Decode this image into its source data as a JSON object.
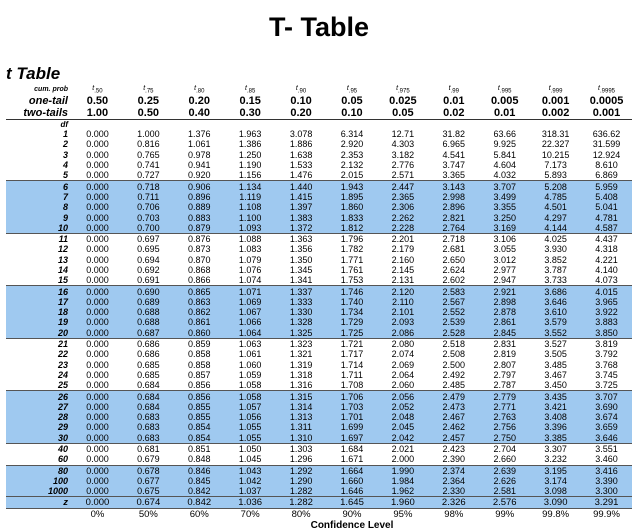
{
  "slide_title": "T- Table",
  "table_title": "t Table",
  "header": {
    "t_row": [
      "t .50",
      "t .75",
      "t .80",
      "t .85",
      "t .90",
      "t .95",
      "t .975",
      "t .99",
      "t .995",
      "t .999",
      "t .9995"
    ],
    "cum_prob_label": "cum. prob",
    "cum_prob": [
      "t .50",
      "t .75",
      "t .80",
      "t .85",
      "t .90",
      "t .95",
      "t .975",
      "t .99",
      "t .995",
      "t .999",
      "t .9995"
    ],
    "one_tail_label": "one-tail",
    "one_tail": [
      "0.50",
      "0.25",
      "0.20",
      "0.15",
      "0.10",
      "0.05",
      "0.025",
      "0.01",
      "0.005",
      "0.001",
      "0.0005"
    ],
    "two_tails_label": "two-tails",
    "two_tails": [
      "1.00",
      "0.50",
      "0.40",
      "0.30",
      "0.20",
      "0.10",
      "0.05",
      "0.02",
      "0.01",
      "0.002",
      "0.001"
    ],
    "df_label": "df"
  },
  "rows": [
    {
      "df": "1",
      "vals": [
        "0.000",
        "1.000",
        "1.376",
        "1.963",
        "3.078",
        "6.314",
        "12.71",
        "31.82",
        "63.66",
        "318.31",
        "636.62"
      ]
    },
    {
      "df": "2",
      "vals": [
        "0.000",
        "0.816",
        "1.061",
        "1.386",
        "1.886",
        "2.920",
        "4.303",
        "6.965",
        "9.925",
        "22.327",
        "31.599"
      ]
    },
    {
      "df": "3",
      "vals": [
        "0.000",
        "0.765",
        "0.978",
        "1.250",
        "1.638",
        "2.353",
        "3.182",
        "4.541",
        "5.841",
        "10.215",
        "12.924"
      ]
    },
    {
      "df": "4",
      "vals": [
        "0.000",
        "0.741",
        "0.941",
        "1.190",
        "1.533",
        "2.132",
        "2.776",
        "3.747",
        "4.604",
        "7.173",
        "8.610"
      ]
    },
    {
      "df": "5",
      "vals": [
        "0.000",
        "0.727",
        "0.920",
        "1.156",
        "1.476",
        "2.015",
        "2.571",
        "3.365",
        "4.032",
        "5.893",
        "6.869"
      ]
    },
    {
      "df": "6",
      "vals": [
        "0.000",
        "0.718",
        "0.906",
        "1.134",
        "1.440",
        "1.943",
        "2.447",
        "3.143",
        "3.707",
        "5.208",
        "5.959"
      ]
    },
    {
      "df": "7",
      "vals": [
        "0.000",
        "0.711",
        "0.896",
        "1.119",
        "1.415",
        "1.895",
        "2.365",
        "2.998",
        "3.499",
        "4.785",
        "5.408"
      ]
    },
    {
      "df": "8",
      "vals": [
        "0.000",
        "0.706",
        "0.889",
        "1.108",
        "1.397",
        "1.860",
        "2.306",
        "2.896",
        "3.355",
        "4.501",
        "5.041"
      ]
    },
    {
      "df": "9",
      "vals": [
        "0.000",
        "0.703",
        "0.883",
        "1.100",
        "1.383",
        "1.833",
        "2.262",
        "2.821",
        "3.250",
        "4.297",
        "4.781"
      ]
    },
    {
      "df": "10",
      "vals": [
        "0.000",
        "0.700",
        "0.879",
        "1.093",
        "1.372",
        "1.812",
        "2.228",
        "2.764",
        "3.169",
        "4.144",
        "4.587"
      ]
    },
    {
      "df": "11",
      "vals": [
        "0.000",
        "0.697",
        "0.876",
        "1.088",
        "1.363",
        "1.796",
        "2.201",
        "2.718",
        "3.106",
        "4.025",
        "4.437"
      ]
    },
    {
      "df": "12",
      "vals": [
        "0.000",
        "0.695",
        "0.873",
        "1.083",
        "1.356",
        "1.782",
        "2.179",
        "2.681",
        "3.055",
        "3.930",
        "4.318"
      ]
    },
    {
      "df": "13",
      "vals": [
        "0.000",
        "0.694",
        "0.870",
        "1.079",
        "1.350",
        "1.771",
        "2.160",
        "2.650",
        "3.012",
        "3.852",
        "4.221"
      ]
    },
    {
      "df": "14",
      "vals": [
        "0.000",
        "0.692",
        "0.868",
        "1.076",
        "1.345",
        "1.761",
        "2.145",
        "2.624",
        "2.977",
        "3.787",
        "4.140"
      ]
    },
    {
      "df": "15",
      "vals": [
        "0.000",
        "0.691",
        "0.866",
        "1.074",
        "1.341",
        "1.753",
        "2.131",
        "2.602",
        "2.947",
        "3.733",
        "4.073"
      ]
    },
    {
      "df": "16",
      "vals": [
        "0.000",
        "0.690",
        "0.865",
        "1.071",
        "1.337",
        "1.746",
        "2.120",
        "2.583",
        "2.921",
        "3.686",
        "4.015"
      ]
    },
    {
      "df": "17",
      "vals": [
        "0.000",
        "0.689",
        "0.863",
        "1.069",
        "1.333",
        "1.740",
        "2.110",
        "2.567",
        "2.898",
        "3.646",
        "3.965"
      ]
    },
    {
      "df": "18",
      "vals": [
        "0.000",
        "0.688",
        "0.862",
        "1.067",
        "1.330",
        "1.734",
        "2.101",
        "2.552",
        "2.878",
        "3.610",
        "3.922"
      ]
    },
    {
      "df": "19",
      "vals": [
        "0.000",
        "0.688",
        "0.861",
        "1.066",
        "1.328",
        "1.729",
        "2.093",
        "2.539",
        "2.861",
        "3.579",
        "3.883"
      ]
    },
    {
      "df": "20",
      "vals": [
        "0.000",
        "0.687",
        "0.860",
        "1.064",
        "1.325",
        "1.725",
        "2.086",
        "2.528",
        "2.845",
        "3.552",
        "3.850"
      ]
    },
    {
      "df": "21",
      "vals": [
        "0.000",
        "0.686",
        "0.859",
        "1.063",
        "1.323",
        "1.721",
        "2.080",
        "2.518",
        "2.831",
        "3.527",
        "3.819"
      ]
    },
    {
      "df": "22",
      "vals": [
        "0.000",
        "0.686",
        "0.858",
        "1.061",
        "1.321",
        "1.717",
        "2.074",
        "2.508",
        "2.819",
        "3.505",
        "3.792"
      ]
    },
    {
      "df": "23",
      "vals": [
        "0.000",
        "0.685",
        "0.858",
        "1.060",
        "1.319",
        "1.714",
        "2.069",
        "2.500",
        "2.807",
        "3.485",
        "3.768"
      ]
    },
    {
      "df": "24",
      "vals": [
        "0.000",
        "0.685",
        "0.857",
        "1.059",
        "1.318",
        "1.711",
        "2.064",
        "2.492",
        "2.797",
        "3.467",
        "3.745"
      ]
    },
    {
      "df": "25",
      "vals": [
        "0.000",
        "0.684",
        "0.856",
        "1.058",
        "1.316",
        "1.708",
        "2.060",
        "2.485",
        "2.787",
        "3.450",
        "3.725"
      ]
    },
    {
      "df": "26",
      "vals": [
        "0.000",
        "0.684",
        "0.856",
        "1.058",
        "1.315",
        "1.706",
        "2.056",
        "2.479",
        "2.779",
        "3.435",
        "3.707"
      ]
    },
    {
      "df": "27",
      "vals": [
        "0.000",
        "0.684",
        "0.855",
        "1.057",
        "1.314",
        "1.703",
        "2.052",
        "2.473",
        "2.771",
        "3.421",
        "3.690"
      ]
    },
    {
      "df": "28",
      "vals": [
        "0.000",
        "0.683",
        "0.855",
        "1.056",
        "1.313",
        "1.701",
        "2.048",
        "2.467",
        "2.763",
        "3.408",
        "3.674"
      ]
    },
    {
      "df": "29",
      "vals": [
        "0.000",
        "0.683",
        "0.854",
        "1.055",
        "1.311",
        "1.699",
        "2.045",
        "2.462",
        "2.756",
        "3.396",
        "3.659"
      ]
    },
    {
      "df": "30",
      "vals": [
        "0.000",
        "0.683",
        "0.854",
        "1.055",
        "1.310",
        "1.697",
        "2.042",
        "2.457",
        "2.750",
        "3.385",
        "3.646"
      ]
    },
    {
      "df": "40",
      "vals": [
        "0.000",
        "0.681",
        "0.851",
        "1.050",
        "1.303",
        "1.684",
        "2.021",
        "2.423",
        "2.704",
        "3.307",
        "3.551"
      ]
    },
    {
      "df": "60",
      "vals": [
        "0.000",
        "0.679",
        "0.848",
        "1.045",
        "1.296",
        "1.671",
        "2.000",
        "2.390",
        "2.660",
        "3.232",
        "3.460"
      ]
    },
    {
      "df": "80",
      "vals": [
        "0.000",
        "0.678",
        "0.846",
        "1.043",
        "1.292",
        "1.664",
        "1.990",
        "2.374",
        "2.639",
        "3.195",
        "3.416"
      ]
    },
    {
      "df": "100",
      "vals": [
        "0.000",
        "0.677",
        "0.845",
        "1.042",
        "1.290",
        "1.660",
        "1.984",
        "2.364",
        "2.626",
        "3.174",
        "3.390"
      ]
    },
    {
      "df": "1000",
      "vals": [
        "0.000",
        "0.675",
        "0.842",
        "1.037",
        "1.282",
        "1.646",
        "1.962",
        "2.330",
        "2.581",
        "3.098",
        "3.300"
      ]
    }
  ],
  "z_row": {
    "label": "z",
    "vals": [
      "0.000",
      "0.674",
      "0.842",
      "1.036",
      "1.282",
      "1.645",
      "1.960",
      "2.326",
      "2.576",
      "3.090",
      "3.291"
    ]
  },
  "confidence": [
    "0%",
    "50%",
    "60%",
    "70%",
    "80%",
    "90%",
    "95%",
    "98%",
    "99%",
    "99.8%",
    "99.9%"
  ],
  "confidence_label": "Confidence Level",
  "colors": {
    "band": "#9fc9f0",
    "text": "#000000"
  }
}
